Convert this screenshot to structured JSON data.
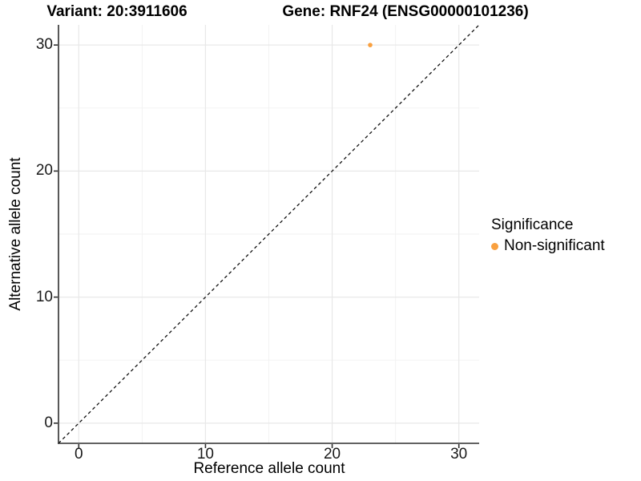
{
  "titles": {
    "variant": "Variant: 20:3911606",
    "gene": "Gene: RNF24 (ENSG00000101236)"
  },
  "axes": {
    "x_label": "Reference allele count",
    "y_label": "Alternative allele count"
  },
  "legend": {
    "title": "Significance",
    "entries": [
      {
        "label": "Non-significant",
        "color": "#F9A03F"
      }
    ]
  },
  "colors": {
    "background": "#FFFFFF",
    "point": "#F9A03F",
    "grid_major": "#E8E8E8",
    "grid_minor": "#F1F1F1",
    "axis_line": "#2F2F2F",
    "dashed_line": "#111111",
    "text": "#000000"
  },
  "chart_data": {
    "type": "scatter",
    "title": "Variant: 20:3911606 | Gene: RNF24 (ENSG00000101236)",
    "xlabel": "Reference allele count",
    "ylabel": "Alternative allele count",
    "xlim": [
      -1.6,
      31.6
    ],
    "ylim": [
      -1.6,
      31.6
    ],
    "xticks": [
      0,
      10,
      20,
      30
    ],
    "yticks": [
      0,
      10,
      20,
      30
    ],
    "x_minor_ticks": [
      5,
      15,
      25
    ],
    "y_minor_ticks": [
      5,
      15,
      25
    ],
    "grid": "on",
    "legend_position": "right",
    "series": [
      {
        "name": "Non-significant",
        "color": "#F9A03F",
        "points": [
          {
            "x": 23,
            "y": 30
          }
        ]
      }
    ],
    "reference_line": {
      "kind": "identity",
      "slope": 1,
      "intercept": 0,
      "style": "dashed"
    }
  }
}
